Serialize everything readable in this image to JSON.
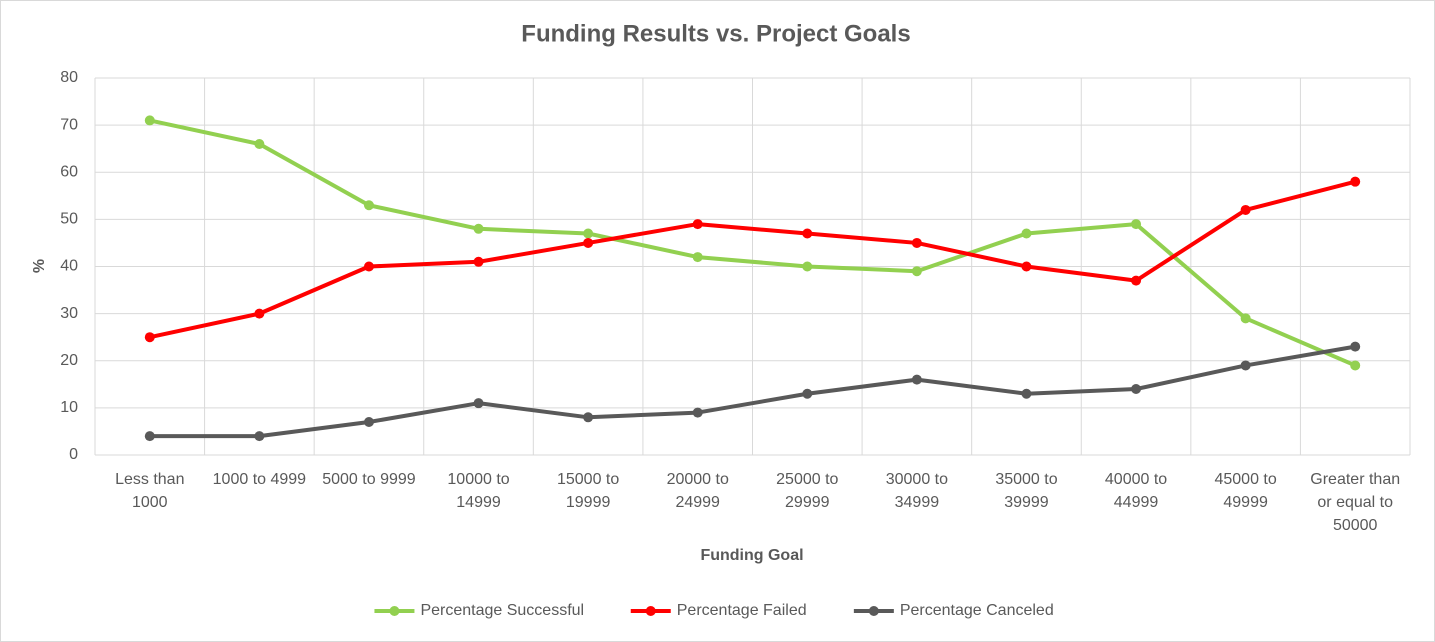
{
  "chart_data": {
    "type": "line",
    "title": "Funding Results vs. Project Goals",
    "x_label": "Funding Goal",
    "y_label": "%",
    "categories": [
      "Less than 1000",
      "1000 to 4999",
      "5000 to 9999",
      "10000 to 14999",
      "15000 to 19999",
      "20000 to 24999",
      "25000 to 29999",
      "30000 to 34999",
      "35000 to 39999",
      "40000 to 44999",
      "45000 to 49999",
      "Greater than or equal to 50000"
    ],
    "series": [
      {
        "name": "Percentage Successful",
        "color": "#92d050",
        "values": [
          71,
          66,
          53,
          48,
          47,
          42,
          40,
          39,
          47,
          49,
          29,
          19
        ]
      },
      {
        "name": "Percentage Failed",
        "color": "#ff0000",
        "values": [
          25,
          30,
          40,
          41,
          45,
          49,
          47,
          45,
          40,
          37,
          52,
          58
        ]
      },
      {
        "name": "Percentage Canceled",
        "color": "#595959",
        "values": [
          4,
          4,
          7,
          11,
          8,
          9,
          13,
          16,
          13,
          14,
          19,
          23
        ]
      }
    ],
    "ylim": [
      0,
      80
    ],
    "yticks": [
      0,
      10,
      20,
      30,
      40,
      50,
      60,
      70,
      80
    ],
    "grid": true,
    "legend": "bottom"
  }
}
